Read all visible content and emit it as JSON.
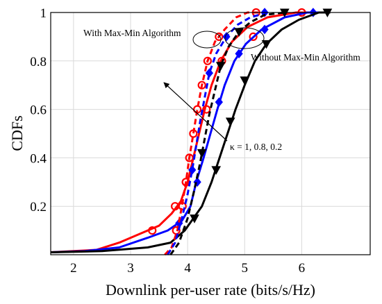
{
  "chart_data": {
    "type": "line",
    "title": "",
    "xlabel": "Downlink per-user rate (bits/s/Hz)",
    "ylabel": "CDFs",
    "xlim": [
      1.6,
      7.2
    ],
    "ylim": [
      0,
      1.0
    ],
    "x_ticks": [
      "2",
      "3",
      "4",
      "5",
      "6"
    ],
    "y_ticks": [
      "0.2",
      "0.4",
      "0.6",
      "0.8",
      "1"
    ],
    "grid": true,
    "legend": "none",
    "annotations": {
      "with": "With Max-Min Algorithm",
      "without": "Without Max-Min Algorithm",
      "kappa": "κ = 1, 0.8, 0.2"
    },
    "series": [
      {
        "color": "#ff0000",
        "marker": "circle",
        "dashed": false,
        "points": [
          [
            1.6,
            0.01
          ],
          [
            2.0,
            0.015
          ],
          [
            2.4,
            0.02
          ],
          [
            2.8,
            0.05
          ],
          [
            3.2,
            0.09
          ],
          [
            3.5,
            0.12
          ],
          [
            3.72,
            0.17
          ],
          [
            3.88,
            0.22
          ],
          [
            4.0,
            0.3
          ],
          [
            4.1,
            0.4
          ],
          [
            4.2,
            0.5
          ],
          [
            4.3,
            0.6
          ],
          [
            4.42,
            0.7
          ],
          [
            4.58,
            0.8
          ],
          [
            4.78,
            0.88
          ],
          [
            5.05,
            0.94
          ],
          [
            5.4,
            0.98
          ],
          [
            5.9,
            1.0
          ],
          [
            6.1,
            1.0
          ]
        ],
        "markers": [
          [
            3.38,
            0.1
          ],
          [
            3.78,
            0.2
          ],
          [
            3.97,
            0.3
          ],
          [
            4.33,
            0.6
          ],
          [
            4.6,
            0.8
          ],
          [
            5.15,
            0.9
          ],
          [
            6.0,
            1.0
          ]
        ]
      },
      {
        "color": "#0000ff",
        "marker": "diamond",
        "dashed": false,
        "points": [
          [
            1.6,
            0.01
          ],
          [
            2.2,
            0.015
          ],
          [
            2.8,
            0.03
          ],
          [
            3.3,
            0.07
          ],
          [
            3.65,
            0.1
          ],
          [
            3.9,
            0.14
          ],
          [
            4.05,
            0.2
          ],
          [
            4.15,
            0.3
          ],
          [
            4.28,
            0.4
          ],
          [
            4.4,
            0.5
          ],
          [
            4.52,
            0.6
          ],
          [
            4.65,
            0.7
          ],
          [
            4.82,
            0.8
          ],
          [
            5.02,
            0.87
          ],
          [
            5.3,
            0.93
          ],
          [
            5.7,
            0.98
          ],
          [
            6.1,
            1.0
          ],
          [
            6.3,
            1.0
          ]
        ],
        "markers": [
          [
            3.85,
            0.13
          ],
          [
            4.17,
            0.3
          ],
          [
            4.55,
            0.63
          ],
          [
            4.9,
            0.83
          ],
          [
            5.35,
            0.93
          ],
          [
            6.2,
            1.0
          ]
        ]
      },
      {
        "color": "#000000",
        "marker": "triangle-down",
        "dashed": false,
        "points": [
          [
            1.6,
            0.01
          ],
          [
            2.5,
            0.015
          ],
          [
            3.3,
            0.03
          ],
          [
            3.7,
            0.05
          ],
          [
            3.95,
            0.1
          ],
          [
            4.1,
            0.15
          ],
          [
            4.25,
            0.2
          ],
          [
            4.42,
            0.3
          ],
          [
            4.56,
            0.4
          ],
          [
            4.7,
            0.5
          ],
          [
            4.84,
            0.6
          ],
          [
            5.0,
            0.7
          ],
          [
            5.18,
            0.8
          ],
          [
            5.38,
            0.87
          ],
          [
            5.65,
            0.93
          ],
          [
            5.95,
            0.97
          ],
          [
            6.3,
            1.0
          ],
          [
            6.5,
            1.0
          ]
        ],
        "markers": [
          [
            4.12,
            0.15
          ],
          [
            4.5,
            0.35
          ],
          [
            4.75,
            0.55
          ],
          [
            5.0,
            0.72
          ],
          [
            5.38,
            0.87
          ],
          [
            6.45,
            1.0
          ]
        ]
      },
      {
        "color": "#ff0000",
        "marker": "circle",
        "dashed": true,
        "points": [
          [
            3.6,
            0.0
          ],
          [
            3.72,
            0.03
          ],
          [
            3.82,
            0.1
          ],
          [
            3.9,
            0.2
          ],
          [
            3.97,
            0.3
          ],
          [
            4.03,
            0.4
          ],
          [
            4.1,
            0.5
          ],
          [
            4.17,
            0.6
          ],
          [
            4.25,
            0.7
          ],
          [
            4.35,
            0.8
          ],
          [
            4.48,
            0.88
          ],
          [
            4.65,
            0.93
          ],
          [
            4.85,
            0.98
          ],
          [
            5.05,
            1.0
          ],
          [
            5.3,
            1.0
          ]
        ],
        "markers": [
          [
            3.8,
            0.1
          ],
          [
            3.91,
            0.2
          ],
          [
            3.97,
            0.3
          ],
          [
            4.03,
            0.4
          ],
          [
            4.1,
            0.5
          ],
          [
            4.17,
            0.6
          ],
          [
            4.25,
            0.7
          ],
          [
            4.35,
            0.8
          ],
          [
            4.55,
            0.9
          ],
          [
            5.2,
            1.0
          ]
        ]
      },
      {
        "color": "#0000ff",
        "marker": "diamond",
        "dashed": true,
        "points": [
          [
            3.65,
            0.0
          ],
          [
            3.78,
            0.05
          ],
          [
            3.9,
            0.15
          ],
          [
            4.0,
            0.25
          ],
          [
            4.08,
            0.35
          ],
          [
            4.15,
            0.45
          ],
          [
            4.22,
            0.55
          ],
          [
            4.3,
            0.65
          ],
          [
            4.38,
            0.75
          ],
          [
            4.5,
            0.83
          ],
          [
            4.68,
            0.9
          ],
          [
            4.88,
            0.95
          ],
          [
            5.1,
            0.98
          ],
          [
            5.4,
            1.0
          ]
        ],
        "markers": [
          [
            4.08,
            0.35
          ],
          [
            4.38,
            0.75
          ],
          [
            4.68,
            0.9
          ],
          [
            5.35,
            1.0
          ]
        ]
      },
      {
        "color": "#000000",
        "marker": "triangle-down",
        "dashed": true,
        "points": [
          [
            3.7,
            0.0
          ],
          [
            3.85,
            0.05
          ],
          [
            4.0,
            0.15
          ],
          [
            4.12,
            0.27
          ],
          [
            4.22,
            0.38
          ],
          [
            4.3,
            0.48
          ],
          [
            4.38,
            0.58
          ],
          [
            4.48,
            0.68
          ],
          [
            4.58,
            0.78
          ],
          [
            4.72,
            0.86
          ],
          [
            4.9,
            0.92
          ],
          [
            5.1,
            0.96
          ],
          [
            5.35,
            0.99
          ],
          [
            5.7,
            1.0
          ]
        ],
        "markers": [
          [
            4.25,
            0.42
          ],
          [
            4.58,
            0.78
          ],
          [
            4.9,
            0.92
          ],
          [
            5.7,
            1.0
          ]
        ]
      }
    ]
  }
}
